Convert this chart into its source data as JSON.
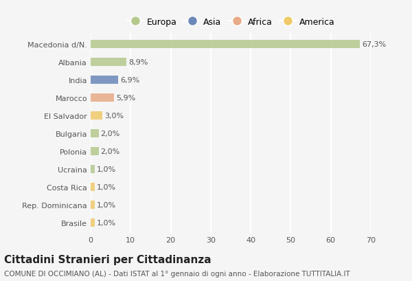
{
  "categories": [
    "Macedonia d/N.",
    "Albania",
    "India",
    "Marocco",
    "El Salvador",
    "Bulgaria",
    "Polonia",
    "Ucraina",
    "Costa Rica",
    "Rep. Dominicana",
    "Brasile"
  ],
  "values": [
    67.3,
    8.9,
    6.9,
    5.9,
    3.0,
    2.0,
    2.0,
    1.0,
    1.0,
    1.0,
    1.0
  ],
  "labels": [
    "67,3%",
    "8,9%",
    "6,9%",
    "5,9%",
    "3,0%",
    "2,0%",
    "2,0%",
    "1,0%",
    "1,0%",
    "1,0%",
    "1,0%"
  ],
  "colors": [
    "#b5c98e",
    "#b5c98e",
    "#6b88b8",
    "#e8aa87",
    "#f0c96a",
    "#b5c98e",
    "#b5c98e",
    "#b5c98e",
    "#f0c96a",
    "#f0c96a",
    "#f0c96a"
  ],
  "legend_labels": [
    "Europa",
    "Asia",
    "Africa",
    "America"
  ],
  "legend_colors": [
    "#b5c98e",
    "#6b88b8",
    "#e8aa87",
    "#f0c96a"
  ],
  "title": "Cittadini Stranieri per Cittadinanza",
  "subtitle": "COMUNE DI OCCIMIANO (AL) - Dati ISTAT al 1° gennaio di ogni anno - Elaborazione TUTTITALIA.IT",
  "xlim": [
    0,
    70
  ],
  "xticks": [
    0,
    10,
    20,
    30,
    40,
    50,
    60,
    70
  ],
  "background_color": "#f5f5f5",
  "grid_color": "#ffffff",
  "bar_height": 0.45,
  "title_fontsize": 11,
  "subtitle_fontsize": 7.5,
  "label_fontsize": 8,
  "tick_fontsize": 8
}
